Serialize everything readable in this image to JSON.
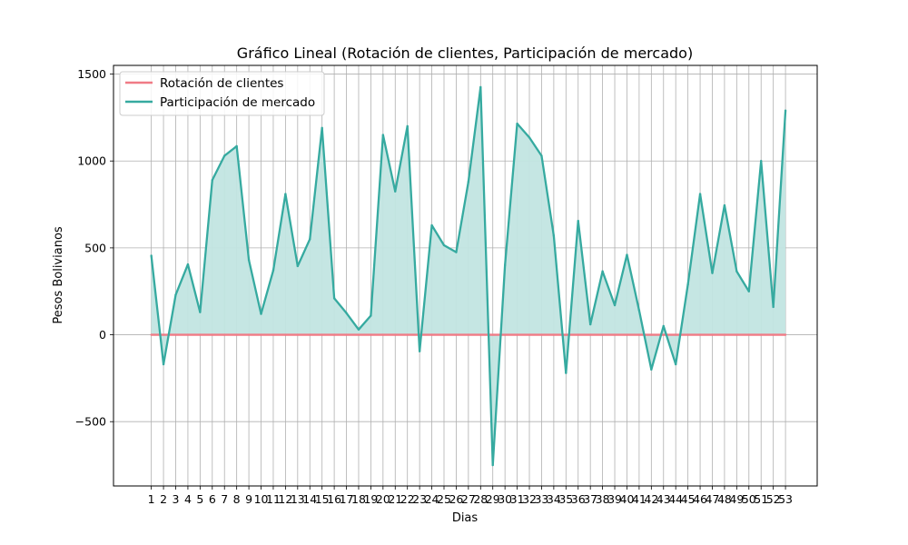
{
  "chart_data": {
    "type": "line",
    "title": "Gráfico Lineal (Rotación de clientes, Participación de mercado)",
    "xlabel": "Dias",
    "ylabel": "Pesos Bolivianos",
    "x": [
      1,
      2,
      3,
      4,
      5,
      6,
      7,
      8,
      9,
      10,
      11,
      12,
      13,
      14,
      15,
      16,
      17,
      18,
      19,
      20,
      21,
      22,
      23,
      24,
      25,
      26,
      27,
      28,
      29,
      30,
      31,
      32,
      33,
      34,
      35,
      36,
      37,
      38,
      39,
      40,
      41,
      42,
      43,
      44,
      45,
      46,
      47,
      48,
      49,
      50,
      51,
      52,
      53
    ],
    "ylim": [
      -870,
      1550
    ],
    "yticks": [
      -500,
      0,
      500,
      1000,
      1500
    ],
    "ytick_labels": [
      "−500",
      "0",
      "500",
      "1000",
      "1500"
    ],
    "grid": true,
    "legend_position": "top-left",
    "series": [
      {
        "name": "Rotación de clientes",
        "color": "#f07b86",
        "fill": false,
        "values": [
          0,
          0,
          0,
          0,
          0,
          0,
          0,
          0,
          0,
          0,
          0,
          0,
          0,
          0,
          0,
          0,
          0,
          0,
          0,
          0,
          0,
          0,
          0,
          0,
          0,
          0,
          0,
          0,
          0,
          0,
          0,
          0,
          0,
          0,
          0,
          0,
          0,
          0,
          0,
          0,
          0,
          0,
          0,
          0,
          0,
          0,
          0,
          0,
          0,
          0,
          0,
          0,
          0
        ]
      },
      {
        "name": "Participación de mercado",
        "color": "#36aaa0",
        "fill": true,
        "fill_color": "#c2e5e1",
        "values": [
          455,
          -170,
          230,
          405,
          130,
          890,
          1030,
          1085,
          430,
          120,
          370,
          810,
          395,
          550,
          1190,
          210,
          125,
          30,
          110,
          1150,
          825,
          1200,
          -95,
          630,
          515,
          475,
          880,
          1425,
          -750,
          400,
          1215,
          1135,
          1030,
          570,
          -220,
          655,
          60,
          365,
          170,
          460,
          140,
          -200,
          50,
          -170,
          290,
          810,
          355,
          745,
          365,
          250,
          1000,
          160,
          1290
        ]
      }
    ]
  }
}
